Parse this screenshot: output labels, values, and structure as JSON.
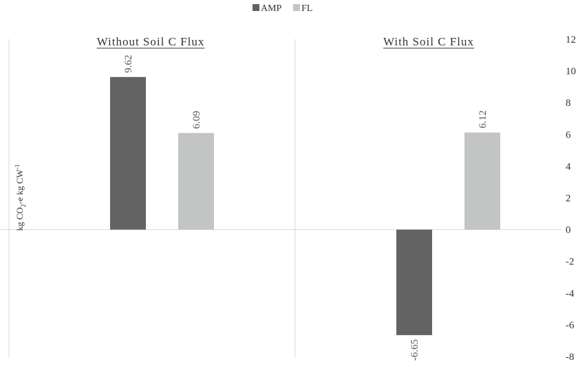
{
  "chart_data": {
    "type": "bar",
    "legend_position": "top-center",
    "grid": false,
    "ylabel": {
      "prefix": "kg CO",
      "sub": "2",
      "mid": "-e kg CW",
      "sup": "-1"
    },
    "ylim": [
      -8,
      12
    ],
    "yticks": [
      12,
      10,
      8,
      6,
      4,
      2,
      0,
      -2,
      -4,
      -6,
      -8
    ],
    "y_axis_side": "right",
    "series": [
      {
        "name": "AMP",
        "color": "#636363"
      },
      {
        "name": "FL",
        "color": "#c3c4c4"
      }
    ],
    "panels": [
      {
        "title": "Without Soil C Flux",
        "values": [
          9.62,
          6.09
        ],
        "labels": [
          "9.62",
          "6.09"
        ]
      },
      {
        "title": "With Soil C Flux",
        "values": [
          -6.65,
          6.12
        ],
        "labels": [
          "-6.65",
          "6.12"
        ]
      }
    ]
  }
}
